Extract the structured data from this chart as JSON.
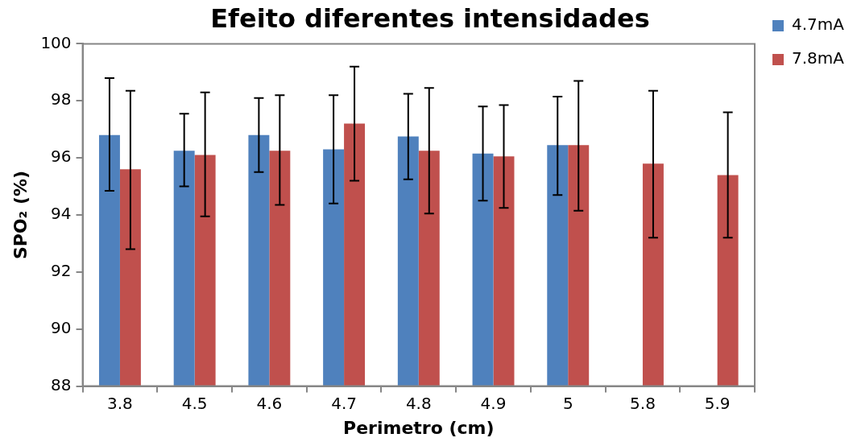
{
  "chart_data": {
    "type": "bar",
    "title": "Efeito diferentes intensidades",
    "xlabel": "Perimetro (cm)",
    "ylabel": "SPO₂ (%)",
    "categories": [
      "3.8",
      "4.5",
      "4.6",
      "4.7",
      "4.8",
      "4.9",
      "5",
      "5.8",
      "5.9"
    ],
    "series": [
      {
        "name": "4.7mA",
        "color": "#4f81bd",
        "values": [
          96.8,
          96.25,
          96.8,
          96.3,
          96.75,
          96.15,
          96.45,
          null,
          null
        ],
        "errors": [
          [
            94.85,
            98.8
          ],
          [
            95.0,
            97.55
          ],
          [
            95.5,
            98.1
          ],
          [
            94.4,
            98.2
          ],
          [
            95.25,
            98.25
          ],
          [
            94.5,
            97.8
          ],
          [
            94.7,
            98.15
          ],
          null,
          null
        ]
      },
      {
        "name": "7.8mA",
        "color": "#c0504d",
        "values": [
          95.6,
          96.1,
          96.25,
          97.2,
          96.25,
          96.05,
          96.45,
          95.8,
          95.4
        ],
        "errors": [
          [
            92.8,
            98.35
          ],
          [
            93.95,
            98.3
          ],
          [
            94.35,
            98.2
          ],
          [
            95.2,
            99.2
          ],
          [
            94.05,
            98.45
          ],
          [
            94.25,
            97.85
          ],
          [
            94.15,
            98.7
          ],
          [
            93.2,
            98.35
          ],
          [
            93.2,
            97.6
          ]
        ]
      }
    ],
    "ylim": [
      88,
      100
    ],
    "yticks": [
      88,
      90,
      92,
      94,
      96,
      98,
      100
    ],
    "grid": false,
    "legend": "right"
  }
}
